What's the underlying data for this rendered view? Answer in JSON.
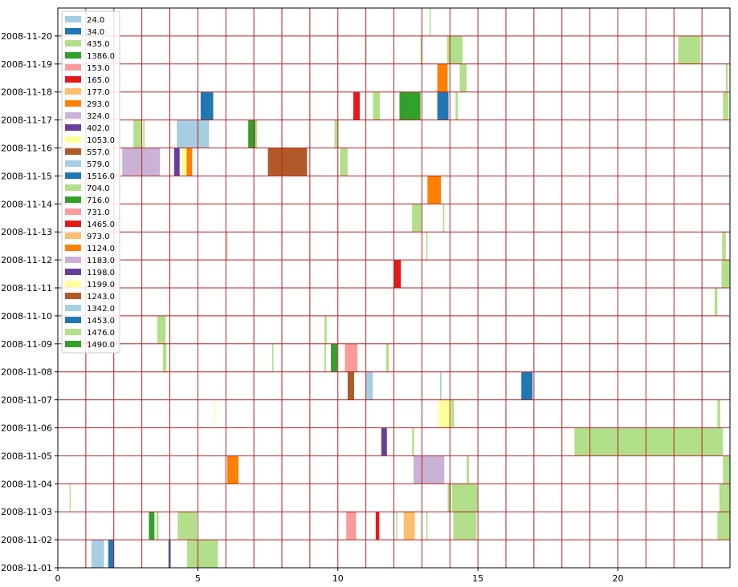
{
  "chart_data": {
    "type": "bar",
    "title": "",
    "xlabel": "",
    "ylabel": "",
    "xlim": [
      0,
      24
    ],
    "x_ticks": [
      0,
      5,
      10,
      15,
      20
    ],
    "x_tick_labels": [
      "0",
      "5",
      "10",
      "15",
      "20"
    ],
    "y_tick_labels": [
      "2008-11-01",
      "2008-11-02",
      "2008-11-03",
      "2008-11-04",
      "2008-11-05",
      "2008-11-06",
      "2008-11-07",
      "2008-11-08",
      "2008-11-09",
      "2008-11-10",
      "2008-11-11",
      "2008-11-12",
      "2008-11-13",
      "2008-11-14",
      "2008-11-15",
      "2008-11-16",
      "2008-11-17",
      "2008-11-18",
      "2008-11-19",
      "2008-11-20"
    ],
    "grid": true,
    "grid_color": "#b22222",
    "legend_placement": "upper-left",
    "series": [
      {
        "name": "24.0",
        "color": "#a6cee3"
      },
      {
        "name": "34.0",
        "color": "#1f78b4"
      },
      {
        "name": "435.0",
        "color": "#b2df8a"
      },
      {
        "name": "1386.0",
        "color": "#33a02c"
      },
      {
        "name": "153.0",
        "color": "#fb9a99"
      },
      {
        "name": "165.0",
        "color": "#e31a1c"
      },
      {
        "name": "177.0",
        "color": "#fdbf6f"
      },
      {
        "name": "293.0",
        "color": "#ff7f00"
      },
      {
        "name": "324.0",
        "color": "#cab2d6"
      },
      {
        "name": "402.0",
        "color": "#6a3d9a"
      },
      {
        "name": "1053.0",
        "color": "#ffff99"
      },
      {
        "name": "557.0",
        "color": "#b15928"
      },
      {
        "name": "579.0",
        "color": "#a6cee3"
      },
      {
        "name": "1516.0",
        "color": "#1f78b4"
      },
      {
        "name": "704.0",
        "color": "#b2df8a"
      },
      {
        "name": "716.0",
        "color": "#33a02c"
      },
      {
        "name": "731.0",
        "color": "#fb9a99"
      },
      {
        "name": "1465.0",
        "color": "#e31a1c"
      },
      {
        "name": "973.0",
        "color": "#fdbf6f"
      },
      {
        "name": "1124.0",
        "color": "#ff7f00"
      },
      {
        "name": "1183.0",
        "color": "#cab2d6"
      },
      {
        "name": "1198.0",
        "color": "#6a3d9a"
      },
      {
        "name": "1199.0",
        "color": "#ffff99"
      },
      {
        "name": "1243.0",
        "color": "#b15928"
      },
      {
        "name": "1342.0",
        "color": "#a6cee3"
      },
      {
        "name": "1453.0",
        "color": "#1f78b4"
      },
      {
        "name": "1476.0",
        "color": "#b2df8a"
      },
      {
        "name": "1490.0",
        "color": "#33a02c"
      }
    ],
    "bars": [
      {
        "day": "2008-11-01",
        "start": 1.2,
        "end": 1.65,
        "color": "#a6cee3"
      },
      {
        "day": "2008-11-01",
        "start": 1.8,
        "end": 2.0,
        "color": "#1f78b4"
      },
      {
        "day": "2008-11-01",
        "start": 3.95,
        "end": 4.03,
        "color": "#1f78b4"
      },
      {
        "day": "2008-11-01",
        "start": 4.62,
        "end": 5.72,
        "color": "#b2df8a"
      },
      {
        "day": "2008-11-02",
        "start": 3.25,
        "end": 3.45,
        "color": "#33a02c"
      },
      {
        "day": "2008-11-02",
        "start": 3.52,
        "end": 3.6,
        "color": "#b2df8a"
      },
      {
        "day": "2008-11-02",
        "start": 4.28,
        "end": 4.96,
        "color": "#b2df8a"
      },
      {
        "day": "2008-11-02",
        "start": 10.3,
        "end": 10.65,
        "color": "#fb9a99"
      },
      {
        "day": "2008-11-02",
        "start": 11.35,
        "end": 11.48,
        "color": "#e31a1c"
      },
      {
        "day": "2008-11-02",
        "start": 12.08,
        "end": 12.12,
        "color": "#b2df8a"
      },
      {
        "day": "2008-11-02",
        "start": 12.35,
        "end": 12.75,
        "color": "#fdbf6f"
      },
      {
        "day": "2008-11-02",
        "start": 13.15,
        "end": 13.2,
        "color": "#b2df8a"
      },
      {
        "day": "2008-11-02",
        "start": 14.12,
        "end": 14.95,
        "color": "#b2df8a"
      },
      {
        "day": "2008-11-02",
        "start": 23.55,
        "end": 24.0,
        "color": "#b2df8a"
      },
      {
        "day": "2008-11-03",
        "start": 0.42,
        "end": 0.46,
        "color": "#b2df8a"
      },
      {
        "day": "2008-11-03",
        "start": 13.92,
        "end": 14.05,
        "color": "#b2df8a"
      },
      {
        "day": "2008-11-03",
        "start": 14.08,
        "end": 14.98,
        "color": "#b2df8a"
      },
      {
        "day": "2008-11-03",
        "start": 23.62,
        "end": 24.0,
        "color": "#b2df8a"
      },
      {
        "day": "2008-11-04",
        "start": 6.05,
        "end": 6.45,
        "color": "#ff7f00"
      },
      {
        "day": "2008-11-04",
        "start": 12.7,
        "end": 13.8,
        "color": "#cab2d6"
      },
      {
        "day": "2008-11-04",
        "start": 14.6,
        "end": 14.68,
        "color": "#b2df8a"
      },
      {
        "day": "2008-11-04",
        "start": 23.75,
        "end": 24.0,
        "color": "#b2df8a"
      },
      {
        "day": "2008-11-05",
        "start": 11.55,
        "end": 11.75,
        "color": "#6a3d9a"
      },
      {
        "day": "2008-11-05",
        "start": 12.65,
        "end": 12.72,
        "color": "#b2df8a"
      },
      {
        "day": "2008-11-05",
        "start": 18.45,
        "end": 23.75,
        "color": "#b2df8a"
      },
      {
        "day": "2008-11-06",
        "start": 5.58,
        "end": 5.62,
        "color": "#ffff99"
      },
      {
        "day": "2008-11-06",
        "start": 13.6,
        "end": 14.1,
        "color": "#ffff99"
      },
      {
        "day": "2008-11-06",
        "start": 14.05,
        "end": 14.15,
        "color": "#b2df8a"
      },
      {
        "day": "2008-11-06",
        "start": 23.55,
        "end": 23.65,
        "color": "#b2df8a"
      },
      {
        "day": "2008-11-07",
        "start": 10.35,
        "end": 10.58,
        "color": "#b15928"
      },
      {
        "day": "2008-11-07",
        "start": 11.0,
        "end": 11.25,
        "color": "#a6cee3"
      },
      {
        "day": "2008-11-07",
        "start": 13.65,
        "end": 13.7,
        "color": "#a6cee3"
      },
      {
        "day": "2008-11-07",
        "start": 16.55,
        "end": 16.95,
        "color": "#1f78b4"
      },
      {
        "day": "2008-11-08",
        "start": 3.75,
        "end": 3.88,
        "color": "#b2df8a"
      },
      {
        "day": "2008-11-08",
        "start": 7.65,
        "end": 7.7,
        "color": "#b2df8a"
      },
      {
        "day": "2008-11-08",
        "start": 9.52,
        "end": 9.58,
        "color": "#b2df8a"
      },
      {
        "day": "2008-11-08",
        "start": 9.75,
        "end": 9.98,
        "color": "#33a02c"
      },
      {
        "day": "2008-11-08",
        "start": 10.25,
        "end": 10.7,
        "color": "#fb9a99"
      },
      {
        "day": "2008-11-08",
        "start": 11.72,
        "end": 11.82,
        "color": "#b2df8a"
      },
      {
        "day": "2008-11-09",
        "start": 3.55,
        "end": 3.85,
        "color": "#b2df8a"
      },
      {
        "day": "2008-11-09",
        "start": 9.52,
        "end": 9.6,
        "color": "#b2df8a"
      },
      {
        "day": "2008-11-10",
        "start": 23.45,
        "end": 23.55,
        "color": "#b2df8a"
      },
      {
        "day": "2008-11-11",
        "start": 12.0,
        "end": 12.25,
        "color": "#e31a1c"
      },
      {
        "day": "2008-11-11",
        "start": 23.7,
        "end": 24.0,
        "color": "#b2df8a"
      },
      {
        "day": "2008-11-12",
        "start": 6.03,
        "end": 6.06,
        "color": "#fdbf6f"
      },
      {
        "day": "2008-11-12",
        "start": 13.15,
        "end": 13.2,
        "color": "#b2df8a"
      },
      {
        "day": "2008-11-12",
        "start": 23.72,
        "end": 23.85,
        "color": "#b2df8a"
      },
      {
        "day": "2008-11-13",
        "start": 12.65,
        "end": 12.98,
        "color": "#b2df8a"
      },
      {
        "day": "2008-11-13",
        "start": 13.75,
        "end": 13.8,
        "color": "#b2df8a"
      },
      {
        "day": "2008-11-14",
        "start": 13.2,
        "end": 13.68,
        "color": "#ff7f00"
      },
      {
        "day": "2008-11-15",
        "start": 2.3,
        "end": 3.65,
        "color": "#cab2d6"
      },
      {
        "day": "2008-11-15",
        "start": 4.15,
        "end": 4.35,
        "color": "#6a3d9a"
      },
      {
        "day": "2008-11-15",
        "start": 4.42,
        "end": 4.6,
        "color": "#ffff99"
      },
      {
        "day": "2008-11-15",
        "start": 4.6,
        "end": 4.8,
        "color": "#ff7f00"
      },
      {
        "day": "2008-11-15",
        "start": 7.5,
        "end": 8.9,
        "color": "#b15928"
      },
      {
        "day": "2008-11-15",
        "start": 10.08,
        "end": 10.35,
        "color": "#b2df8a"
      },
      {
        "day": "2008-11-16",
        "start": 2.7,
        "end": 3.0,
        "color": "#b2df8a"
      },
      {
        "day": "2008-11-16",
        "start": 3.05,
        "end": 3.1,
        "color": "#b2df8a"
      },
      {
        "day": "2008-11-16",
        "start": 4.25,
        "end": 5.4,
        "color": "#a6cee3"
      },
      {
        "day": "2008-11-16",
        "start": 6.8,
        "end": 7.05,
        "color": "#33a02c"
      },
      {
        "day": "2008-11-16",
        "start": 7.05,
        "end": 7.12,
        "color": "#b2df8a"
      },
      {
        "day": "2008-11-16",
        "start": 9.88,
        "end": 10.02,
        "color": "#b2df8a"
      },
      {
        "day": "2008-11-17",
        "start": 5.1,
        "end": 5.55,
        "color": "#1f78b4"
      },
      {
        "day": "2008-11-17",
        "start": 10.55,
        "end": 10.78,
        "color": "#e31a1c"
      },
      {
        "day": "2008-11-17",
        "start": 11.25,
        "end": 11.5,
        "color": "#b2df8a"
      },
      {
        "day": "2008-11-17",
        "start": 12.2,
        "end": 12.95,
        "color": "#33a02c"
      },
      {
        "day": "2008-11-17",
        "start": 13.55,
        "end": 13.95,
        "color": "#1f78b4"
      },
      {
        "day": "2008-11-17",
        "start": 14.2,
        "end": 14.28,
        "color": "#b2df8a"
      },
      {
        "day": "2008-11-17",
        "start": 23.75,
        "end": 23.95,
        "color": "#b2df8a"
      },
      {
        "day": "2008-11-18",
        "start": 13.55,
        "end": 13.92,
        "color": "#ff7f00"
      },
      {
        "day": "2008-11-18",
        "start": 14.35,
        "end": 14.6,
        "color": "#b2df8a"
      },
      {
        "day": "2008-11-18",
        "start": 23.85,
        "end": 23.92,
        "color": "#b2df8a"
      },
      {
        "day": "2008-11-19",
        "start": 10.98,
        "end": 11.02,
        "color": "#b2df8a"
      },
      {
        "day": "2008-11-19",
        "start": 12.95,
        "end": 13.0,
        "color": "#b2df8a"
      },
      {
        "day": "2008-11-19",
        "start": 13.9,
        "end": 14.05,
        "color": "#b2df8a"
      },
      {
        "day": "2008-11-19",
        "start": 14.05,
        "end": 14.45,
        "color": "#b2df8a"
      },
      {
        "day": "2008-11-19",
        "start": 22.15,
        "end": 22.95,
        "color": "#b2df8a"
      },
      {
        "day": "2008-11-20",
        "start": 13.28,
        "end": 13.32,
        "color": "#b2df8a"
      }
    ]
  }
}
